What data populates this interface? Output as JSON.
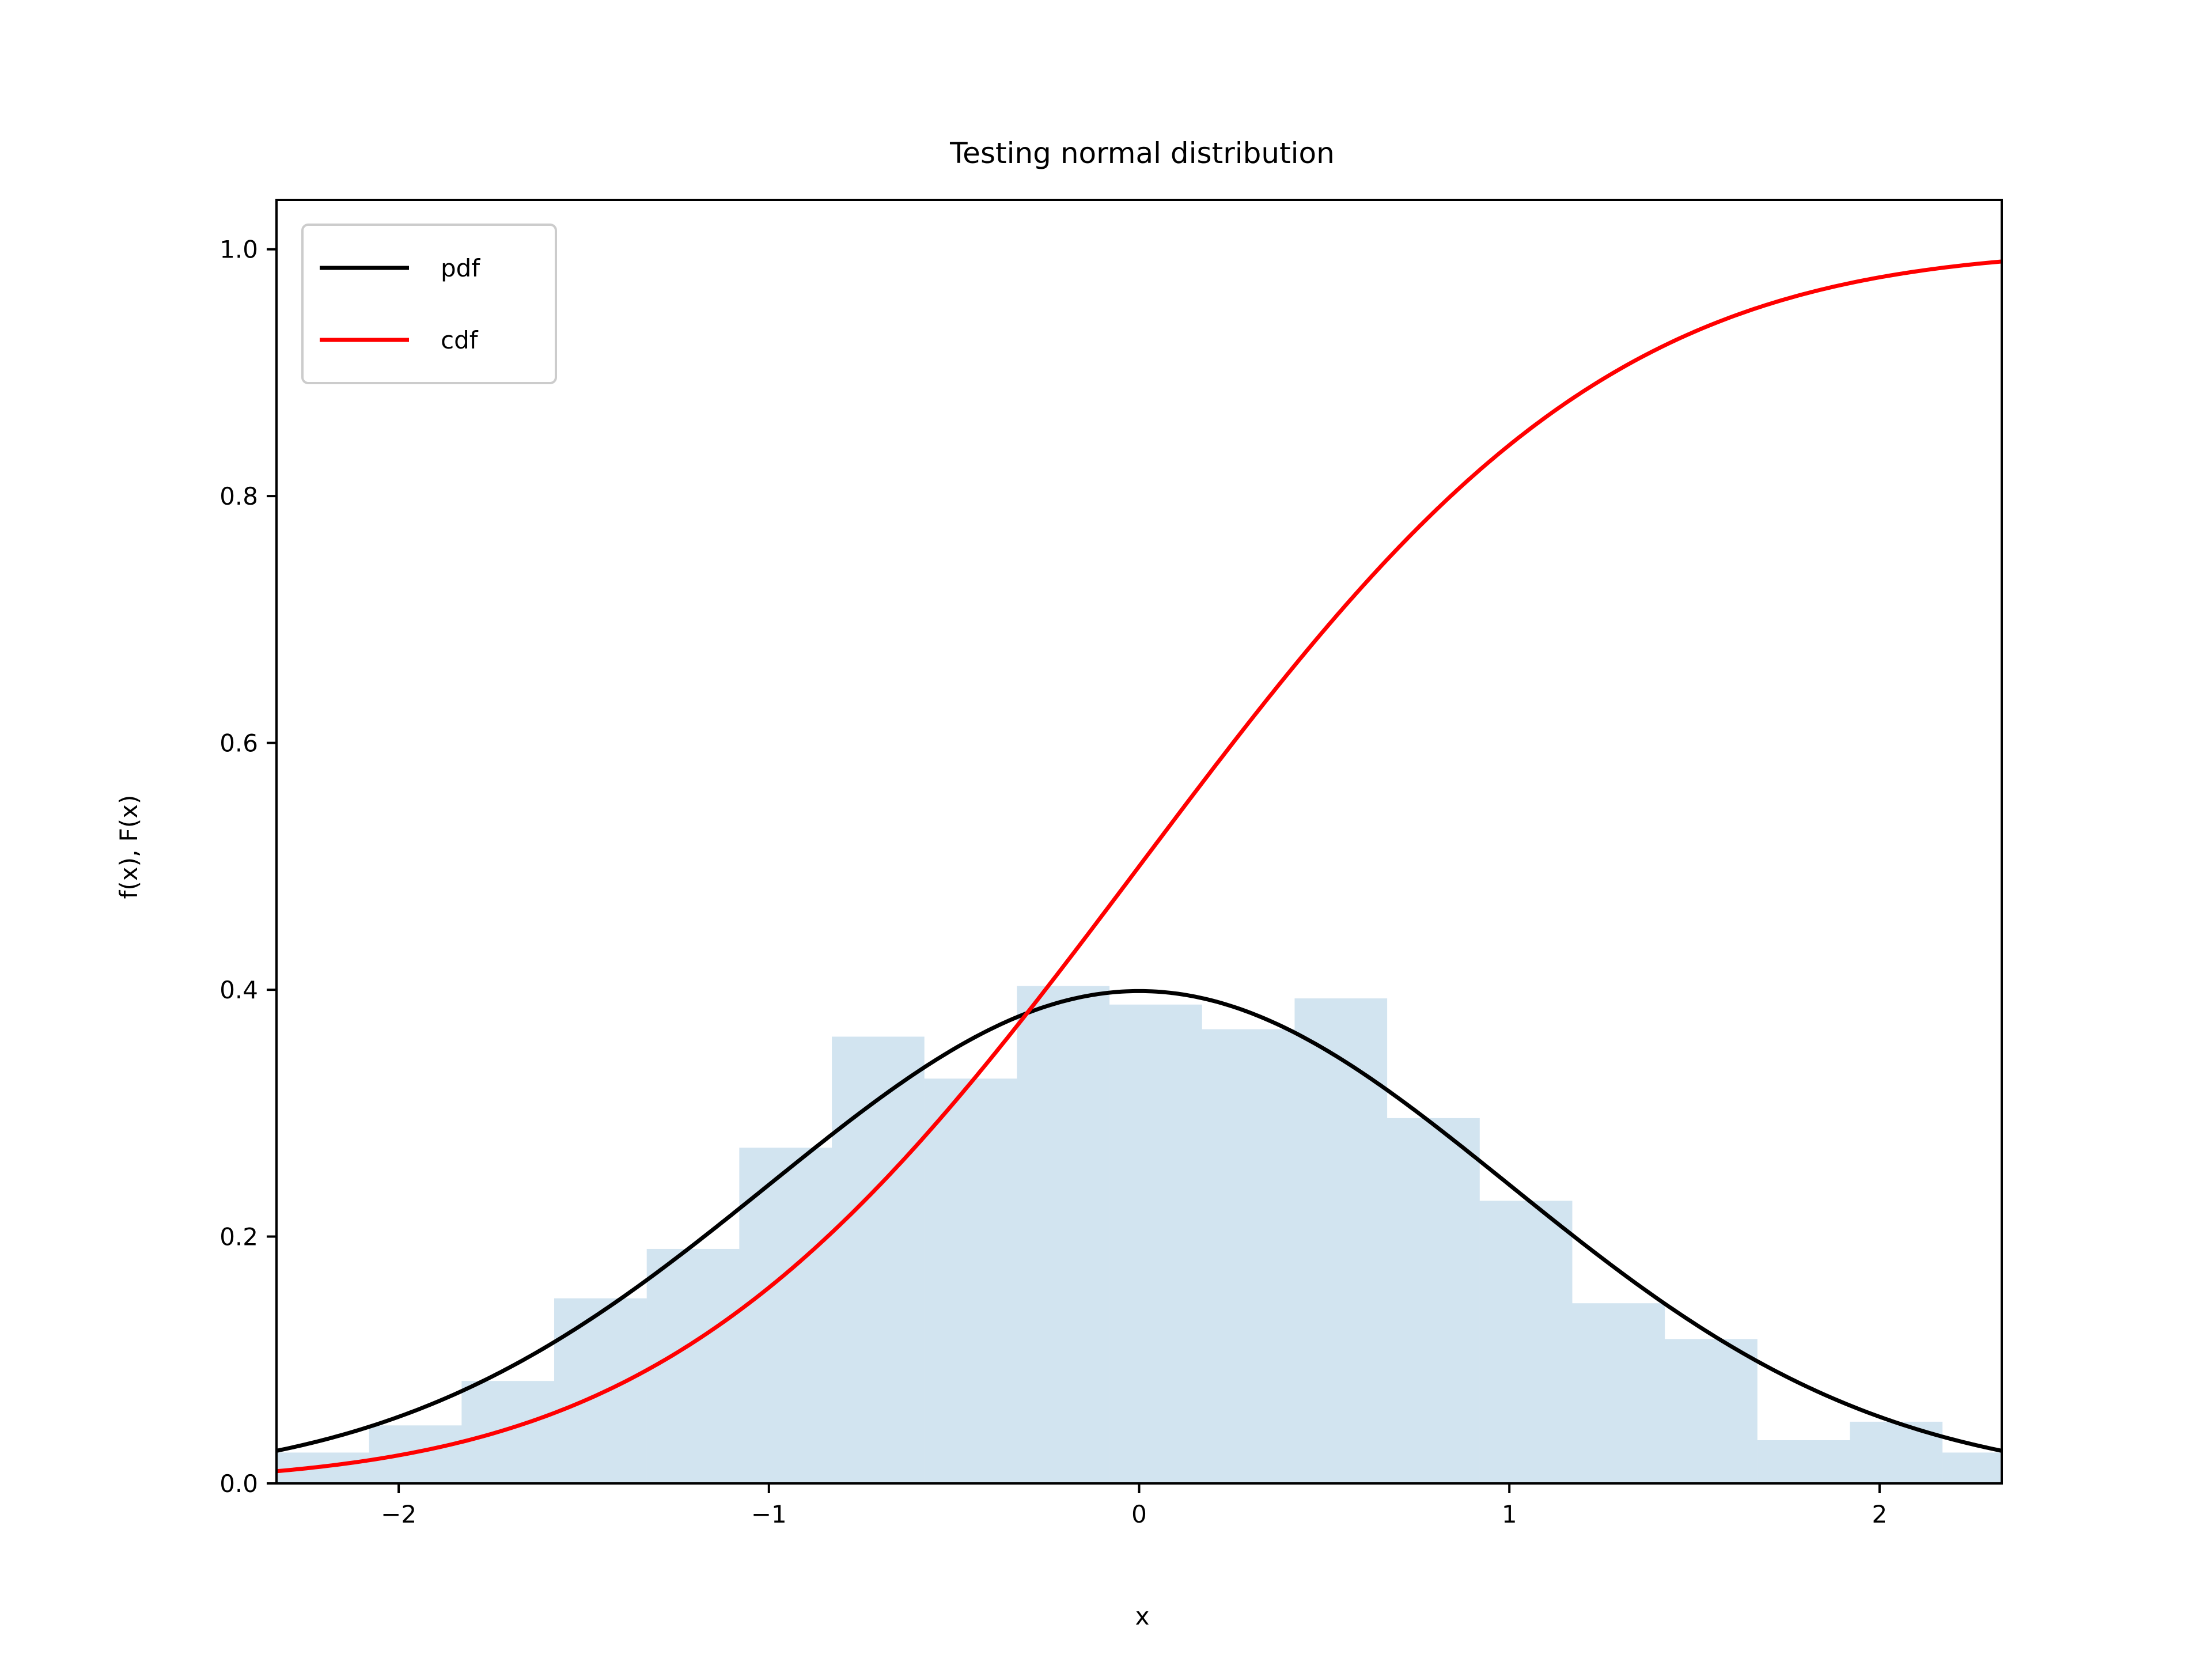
{
  "chart_data": {
    "type": "line",
    "title": "Testing normal distribution",
    "xlabel": "x",
    "ylabel": "f(x), F(x)",
    "xlim": [
      -2.33,
      2.33
    ],
    "ylim": [
      0.0,
      1.04
    ],
    "x_ticks": [
      -2,
      -1,
      0,
      1,
      2
    ],
    "x_tick_labels": [
      "−2",
      "−1",
      "0",
      "1",
      "2"
    ],
    "y_ticks": [
      0.0,
      0.2,
      0.4,
      0.6,
      0.8,
      1.0
    ],
    "y_tick_labels": [
      "0.0",
      "0.2",
      "0.4",
      "0.6",
      "0.8",
      "1.0"
    ],
    "grid": false,
    "legend_position": "top-left",
    "series": [
      {
        "name": "pdf",
        "color": "#000000",
        "function": "normal_pdf",
        "mu": 0,
        "sigma": 1
      },
      {
        "name": "cdf",
        "color": "#ff0000",
        "function": "normal_cdf",
        "mu": 0,
        "sigma": 1
      }
    ],
    "histogram": {
      "color": "#1f77b4",
      "opacity": 0.2,
      "bin_edges": [
        -2.33,
        -2.08,
        -1.83,
        -1.58,
        -1.33,
        -1.08,
        -0.83,
        -0.58,
        -0.33,
        -0.08,
        0.17,
        0.42,
        0.67,
        0.92,
        1.17,
        1.42,
        1.67,
        1.92,
        2.17,
        2.33
      ],
      "densities": [
        0.025,
        0.047,
        0.083,
        0.15,
        0.19,
        0.272,
        0.362,
        0.328,
        0.403,
        0.388,
        0.368,
        0.393,
        0.296,
        0.229,
        0.146,
        0.117,
        0.035,
        0.05,
        0.025
      ]
    }
  }
}
